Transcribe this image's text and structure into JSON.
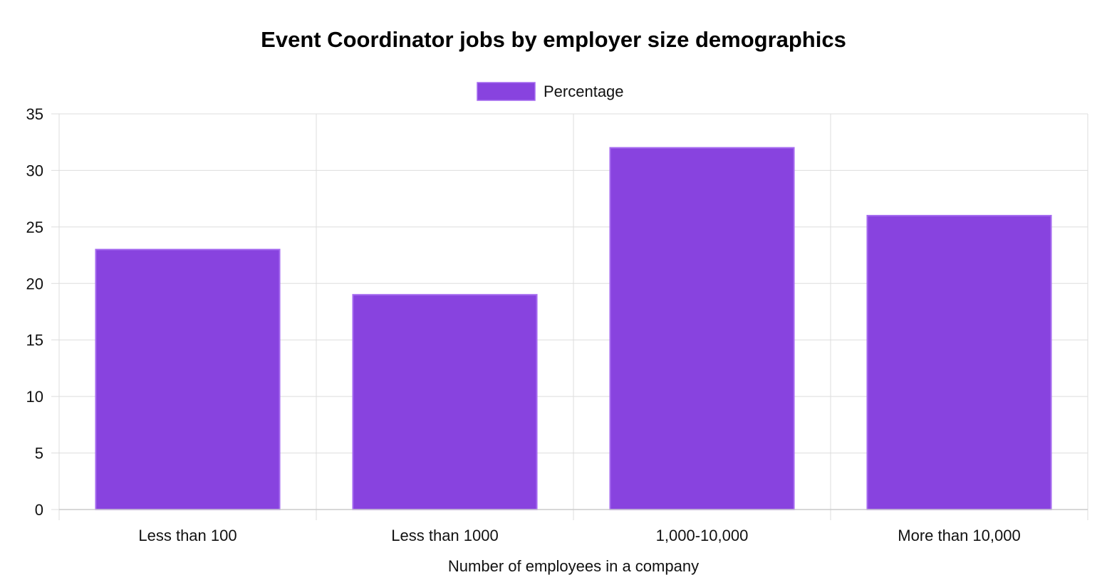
{
  "chart_data": {
    "type": "bar",
    "title": "Event Coordinator jobs by employer size demographics",
    "xlabel": "Number of employees in a company",
    "ylabel": "",
    "categories": [
      "Less than 100",
      "Less than 1000",
      "1,000-10,000",
      "More than 10,000"
    ],
    "series": [
      {
        "name": "Percentage",
        "values": [
          23,
          19,
          32,
          26
        ],
        "color": "#8843df",
        "border_color": "#a66cf0"
      }
    ],
    "ylim": [
      0,
      35
    ],
    "yticks": [
      0,
      5,
      10,
      15,
      20,
      25,
      30,
      35
    ],
    "grid": true,
    "legend_position": "top-center"
  }
}
